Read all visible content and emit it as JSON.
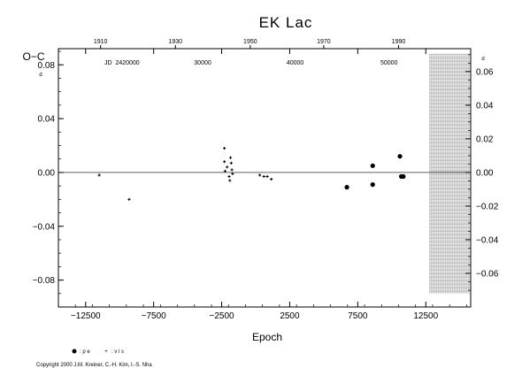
{
  "chart_data": {
    "type": "scatter",
    "title": "EK  Lac",
    "xlabel": "Epoch",
    "ylabel": "O−C",
    "xlim": [
      -14500,
      15800
    ],
    "ylim": [
      -0.1,
      0.092
    ],
    "x_ticks": [
      -12500,
      -7500,
      -2500,
      2500,
      7500,
      12500
    ],
    "x_tick_labels": [
      "−12500",
      "−7500",
      "−2500",
      "2500",
      "7500",
      "12500"
    ],
    "y_ticks": [
      -0.08,
      -0.04,
      0.0,
      0.04,
      0.08
    ],
    "y_tick_labels_left": [
      "−0.08",
      "−0.04",
      "0.00",
      "0.04",
      "0.08"
    ],
    "y2_ticks": [
      -0.06,
      -0.04,
      -0.02,
      0.0,
      0.02,
      0.04,
      0.06
    ],
    "y2_tick_labels": [
      "−0.06",
      "−0.04",
      "−0.02",
      "0.00",
      "0.02",
      "0.04",
      "0.06"
    ],
    "y2_label": "d",
    "y_corner_label": "d",
    "top_axis": {
      "year_ticks": [
        1910,
        1930,
        1950,
        1970,
        1990
      ],
      "year_epochs": [
        -11400,
        -5900,
        -400,
        5000,
        10500
      ],
      "jd_label_prefix": "JD",
      "jd_ticks": [
        "2420000",
        "30000",
        "40000",
        "50000"
      ],
      "jd_epochs": [
        -10700,
        -3900,
        2900,
        9800
      ]
    },
    "future_region": {
      "x_start": 12800,
      "x_end": 15800,
      "y_range": [
        -0.09,
        0.088
      ]
    },
    "zero_line": 0.0,
    "series": [
      {
        "name": "vis",
        "legend_label": ": v i s",
        "marker": "plus",
        "points": [
          [
            -11500,
            -0.002
          ],
          [
            -9300,
            -0.02
          ],
          [
            -2300,
            0.018
          ],
          [
            -2300,
            0.008
          ],
          [
            -2100,
            0.004
          ],
          [
            -1850,
            0.011
          ],
          [
            -1800,
            0.007
          ],
          [
            -1950,
            -0.003
          ],
          [
            -1900,
            -0.006
          ],
          [
            -1750,
            0.002
          ],
          [
            -1700,
            -0.001
          ],
          [
            -2250,
            0.001
          ],
          [
            300,
            -0.002
          ],
          [
            600,
            -0.003
          ],
          [
            850,
            -0.003
          ],
          [
            1150,
            -0.005
          ]
        ]
      },
      {
        "name": "pe",
        "legend_label": ": p e",
        "marker": "dot",
        "points": [
          [
            6700,
            -0.011
          ],
          [
            8600,
            0.005
          ],
          [
            8600,
            -0.009
          ],
          [
            10600,
            0.012
          ],
          [
            10700,
            -0.003
          ],
          [
            10850,
            -0.003
          ]
        ]
      }
    ],
    "grid": false,
    "legend_position": "bottom-left"
  },
  "copyright": "Copyright 2000 J.M. Kreiner, C.-H. Kim, I.-S. Nha",
  "colors": {
    "ink": "#000000",
    "background": "#ffffff",
    "future_shade": "#888888"
  }
}
